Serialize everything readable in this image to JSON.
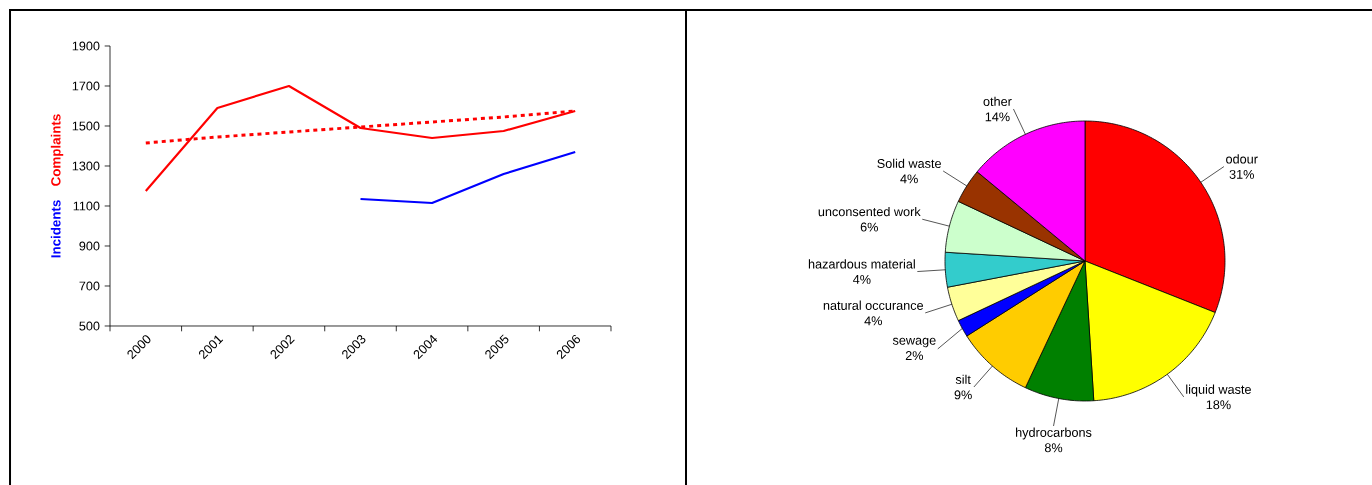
{
  "chart_data": [
    {
      "type": "line",
      "categories": [
        "2000",
        "2001",
        "2002",
        "2003",
        "2004",
        "2005",
        "2006"
      ],
      "series": [
        {
          "name": "Complaints",
          "color": "#ff0000",
          "values": [
            1175,
            1590,
            1700,
            1490,
            1440,
            1475,
            1575
          ]
        },
        {
          "name": "Incidents",
          "color": "#0000ff",
          "values": [
            null,
            null,
            null,
            1135,
            1115,
            1260,
            1370
          ]
        },
        {
          "type": "line",
          "color": "#ff0000",
          "line_style": "dotted",
          "values": [
            1415,
            1445,
            1470,
            1495,
            1520,
            1545,
            1575
          ]
        }
      ],
      "ylim": [
        500,
        1900
      ],
      "yticks": [
        500,
        700,
        900,
        1100,
        1300,
        1500,
        1700,
        1900
      ]
    },
    {
      "type": "pie",
      "categories": [
        "odour",
        "liquid waste",
        "hydrocarbons",
        "silt",
        "sewage",
        "natural occurance",
        "hazardous material",
        "unconsented work",
        "Solid waste",
        "other"
      ],
      "values": [
        31,
        18,
        8,
        9,
        2,
        4,
        4,
        6,
        4,
        14
      ],
      "value_labels": [
        "31%",
        "18%",
        "8%",
        "9%",
        "2%",
        "4%",
        "4%",
        "6%",
        "4%",
        "14%"
      ],
      "colors": [
        "#ff0000",
        "#ffff00",
        "#008000",
        "#ffcc00",
        "#0000ff",
        "#ffff99",
        "#33cccc",
        "#ccffcc",
        "#993300",
        "#ff00ff"
      ]
    }
  ]
}
